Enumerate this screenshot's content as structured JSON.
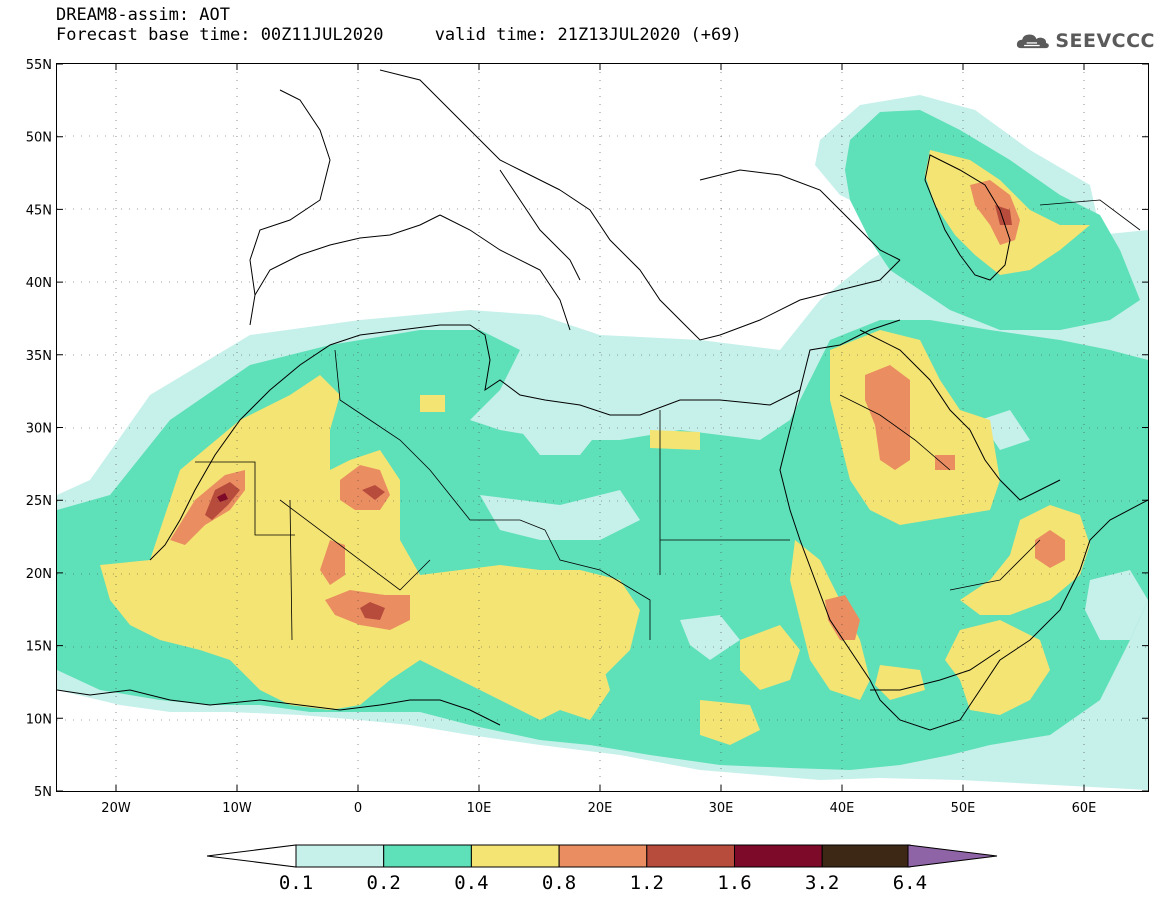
{
  "header": {
    "line1": "DREAM8-assim: AOT",
    "line2": "Forecast base time: 00Z11JUL2020     valid time: 21Z13JUL2020 (+69)"
  },
  "logo": {
    "text": "SEEVCCC",
    "icon": "cloud-logo-icon"
  },
  "map": {
    "lat_labels": [
      "55N",
      "50N",
      "45N",
      "40N",
      "35N",
      "30N",
      "25N",
      "20N",
      "15N",
      "10N",
      "5N"
    ],
    "lon_labels": [
      "20W",
      "10W",
      "0",
      "10E",
      "20E",
      "30E",
      "40E",
      "50E",
      "60E"
    ],
    "grid": "dotted"
  },
  "colorbar": {
    "labels": [
      "0.1",
      "0.2",
      "0.4",
      "0.8",
      "1.2",
      "1.6",
      "3.2",
      "6.4"
    ],
    "colors": [
      "#c6f0ea",
      "#5ee0b8",
      "#f4e474",
      "#ea8e62",
      "#b84c3c",
      "#7c0a28",
      "#3c2814",
      "#8e64a6"
    ]
  }
}
